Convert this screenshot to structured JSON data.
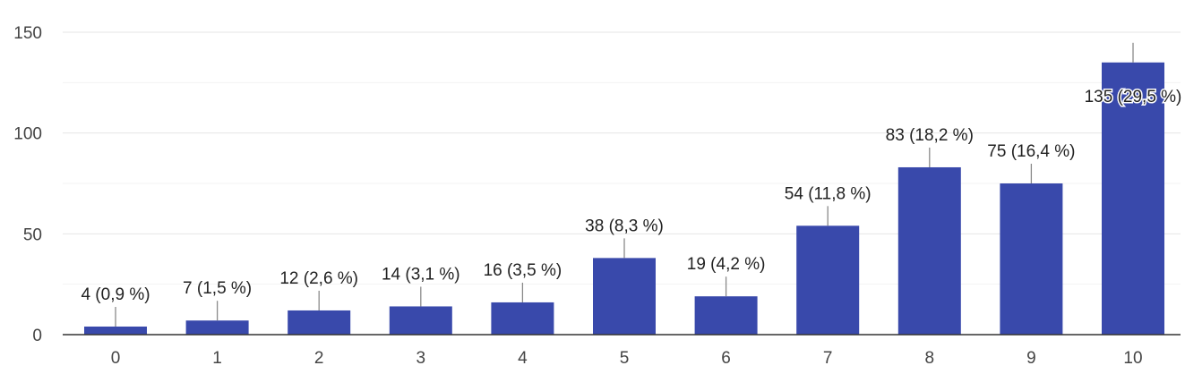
{
  "chart_data": {
    "type": "bar",
    "categories": [
      "0",
      "1",
      "2",
      "3",
      "4",
      "5",
      "6",
      "7",
      "8",
      "9",
      "10"
    ],
    "values": [
      4,
      7,
      12,
      14,
      16,
      38,
      19,
      54,
      83,
      75,
      135
    ],
    "data_labels": [
      "4 (0,9 %)",
      "7 (1,5 %)",
      "12 (2,6 %)",
      "14 (3,1 %)",
      "16 (3,5 %)",
      "38 (8,3 %)",
      "19 (4,2 %)",
      "54 (11,8 %)",
      "83 (18,2 %)",
      "75 (16,4 %)",
      "135 (29,5 %)"
    ],
    "title": "",
    "xlabel": "",
    "ylabel": "",
    "ylim": [
      0,
      150
    ],
    "yticks": [
      "0",
      "50",
      "100",
      "150"
    ],
    "grid": true,
    "legend": "none",
    "colors": {
      "bar": "#3949ab",
      "grid_major": "#e6e6e6",
      "grid_minor": "#f3f3f3",
      "axis": "#333333",
      "leader": "#8a8a8a"
    }
  }
}
